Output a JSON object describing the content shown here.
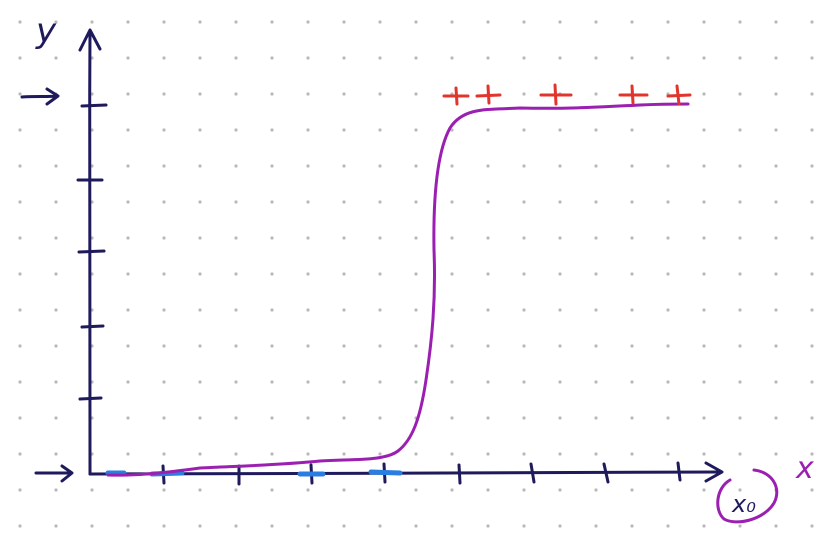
{
  "diagram": {
    "y_axis_label": "y",
    "x_axis_label": "x",
    "x0_label": "x₀",
    "colors": {
      "background": "#ffffff",
      "grid_dots": "#b9b9b9",
      "axes": "#1e1a5c",
      "curve": "#9b1fb0",
      "positive_marks": "#e0342c",
      "negative_marks": "#2a7de1",
      "x_label": "#9b1fb0",
      "y_label": "#1e1a5c"
    },
    "icons": [
      "y-axis-arrow-icon",
      "x-axis-arrow-icon",
      "pointer-arrow-icon"
    ]
  }
}
